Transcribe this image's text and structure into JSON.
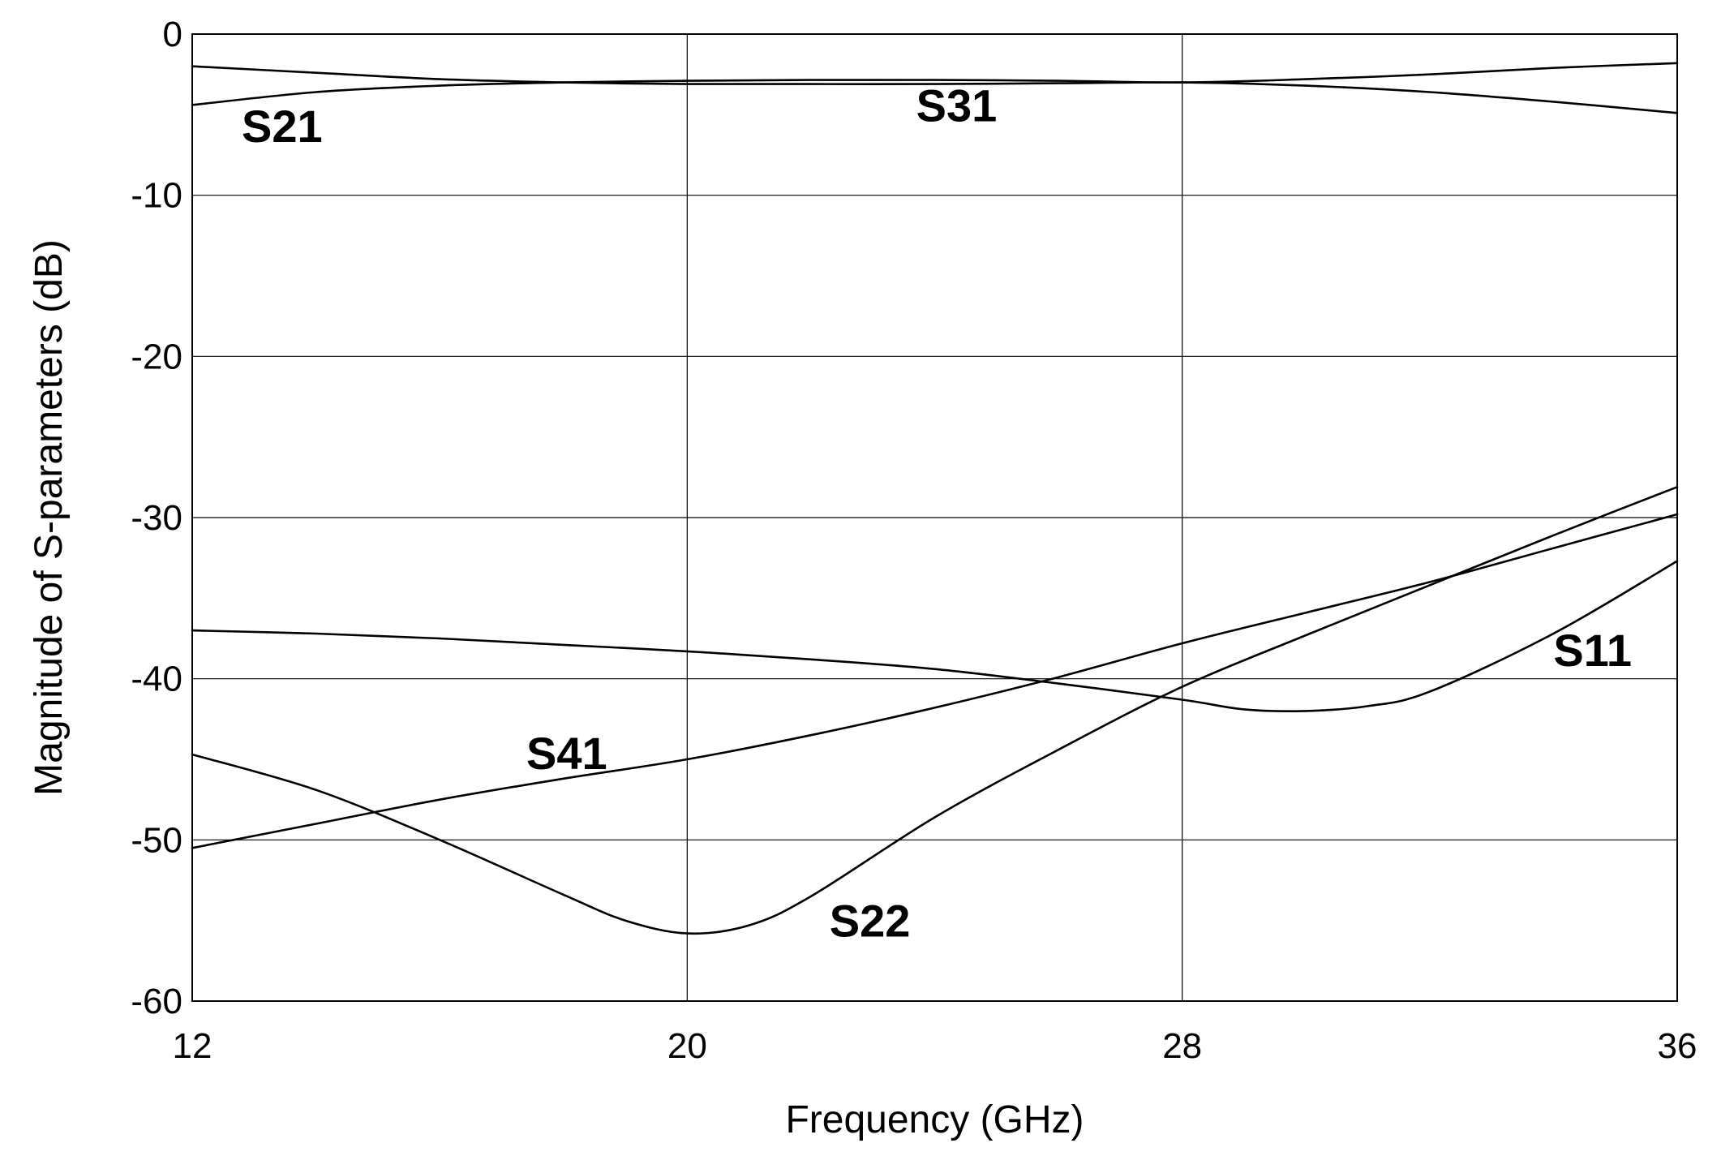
{
  "chart_data": {
    "type": "line",
    "title": "",
    "xlabel": "Frequency (GHz)",
    "ylabel": "Magnitude of S-parameters (dB)",
    "xlim": [
      12,
      36
    ],
    "ylim": [
      -60,
      0
    ],
    "xticks": [
      12,
      20,
      28,
      36
    ],
    "yticks": [
      0,
      -10,
      -20,
      -30,
      -40,
      -50,
      -60
    ],
    "grid": true,
    "legend": "none",
    "line_color": "#000000",
    "series": [
      {
        "name": "S21",
        "x": [
          12,
          14,
          16,
          18,
          20,
          22,
          24,
          26,
          28,
          30,
          32,
          34,
          36
        ],
        "y": [
          -4.4,
          -3.6,
          -3.2,
          -3.0,
          -2.9,
          -2.85,
          -2.85,
          -2.9,
          -3.0,
          -2.8,
          -2.5,
          -2.1,
          -1.8
        ]
      },
      {
        "name": "S31",
        "x": [
          12,
          14,
          16,
          18,
          20,
          22,
          24,
          26,
          28,
          30,
          32,
          34,
          36
        ],
        "y": [
          -2.0,
          -2.4,
          -2.8,
          -3.0,
          -3.1,
          -3.1,
          -3.1,
          -3.05,
          -3.0,
          -3.2,
          -3.6,
          -4.2,
          -4.9
        ]
      },
      {
        "name": "S41",
        "x": [
          12,
          14,
          16,
          18,
          20,
          22,
          24,
          26,
          28,
          30,
          32,
          34,
          36
        ],
        "y": [
          -50.5,
          -49.0,
          -47.5,
          -46.2,
          -45.0,
          -43.5,
          -41.8,
          -39.9,
          -37.8,
          -35.9,
          -34.0,
          -31.9,
          -29.8
        ]
      },
      {
        "name": "S22",
        "x": [
          12,
          14,
          16,
          18,
          19,
          20,
          21,
          22,
          24,
          26,
          28,
          30,
          32,
          34,
          36
        ],
        "y": [
          -44.7,
          -46.9,
          -50.0,
          -53.4,
          -55.0,
          -55.8,
          -55.3,
          -53.5,
          -48.6,
          -44.4,
          -40.5,
          -37.3,
          -34.2,
          -31.1,
          -28.1
        ]
      },
      {
        "name": "S11",
        "x": [
          12,
          14,
          16,
          18,
          20,
          22,
          24,
          26,
          28,
          29,
          30,
          31,
          32,
          34,
          36
        ],
        "y": [
          -37.0,
          -37.2,
          -37.5,
          -37.9,
          -38.3,
          -38.8,
          -39.4,
          -40.3,
          -41.3,
          -41.9,
          -42.0,
          -41.7,
          -40.8,
          -37.2,
          -32.7
        ]
      }
    ],
    "annotations": [
      {
        "text": "S21",
        "x": 12.8,
        "y": -6.7
      },
      {
        "text": "S31",
        "x": 23.7,
        "y": -5.4
      },
      {
        "text": "S41",
        "x": 17.4,
        "y": -45.6
      },
      {
        "text": "S22",
        "x": 22.3,
        "y": -56.0
      },
      {
        "text": "S11",
        "x": 34.0,
        "y": -39.2
      }
    ]
  }
}
